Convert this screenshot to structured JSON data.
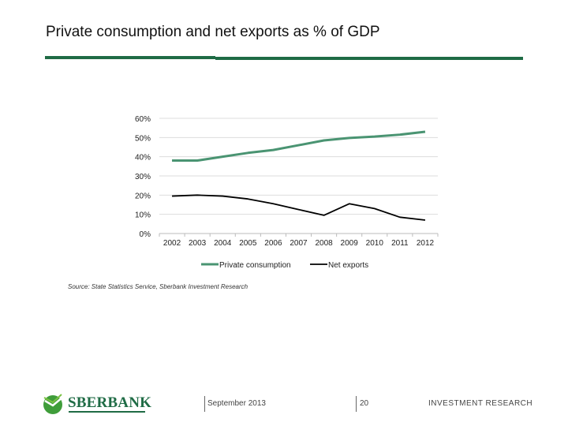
{
  "slide": {
    "title": "Private consumption and net exports as % of GDP",
    "source": "Source: State Statistics Service, Sberbank Investment Research",
    "footer": {
      "logo": "SBERBANK",
      "date": "September 2013",
      "page": "20",
      "department": "INVESTMENT RESEARCH"
    },
    "colors": {
      "brand": "#1f6b45"
    }
  },
  "chart_data": {
    "type": "line",
    "title": "",
    "xlabel": "",
    "ylabel": "",
    "categories": [
      "2002",
      "2003",
      "2004",
      "2005",
      "2006",
      "2007",
      "2008",
      "2009",
      "2010",
      "2011",
      "2012"
    ],
    "ylim": [
      0,
      60
    ],
    "yticks": [
      "0%",
      "10%",
      "20%",
      "30%",
      "40%",
      "50%",
      "60%"
    ],
    "grid": true,
    "legend": "bottom",
    "series": [
      {
        "name": "Private consumption",
        "color": "#4a9472",
        "values": [
          38,
          38,
          40,
          42,
          43.5,
          46,
          48.5,
          49.8,
          50.5,
          51.5,
          53
        ]
      },
      {
        "name": "Net exports",
        "color": "#000000",
        "values": [
          19.5,
          20,
          19.5,
          18,
          15.5,
          12.5,
          9.5,
          15.5,
          13,
          8.5,
          7
        ]
      }
    ]
  }
}
